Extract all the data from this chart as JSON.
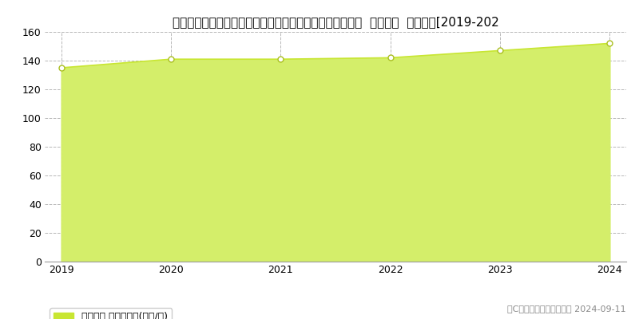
{
  "title": "埼玉県さいたま市中央区大字下落合字大原１０５０番２外  地価公示  地価推移[2019-202",
  "years": [
    2019,
    2020,
    2021,
    2022,
    2023,
    2024
  ],
  "values": [
    135,
    141,
    141,
    142,
    147,
    152
  ],
  "ylim": [
    0,
    160
  ],
  "yticks": [
    0,
    20,
    40,
    60,
    80,
    100,
    120,
    140,
    160
  ],
  "line_color": "#c8e632",
  "fill_color": "#d4ee6a",
  "marker_color": "#ffffff",
  "marker_edge_color": "#aabf20",
  "background_color": "#ffffff",
  "plot_bg_color": "#ffffff",
  "grid_color": "#b0b0b0",
  "legend_label": "地価公示 平均坪単価(万円/坪)",
  "legend_marker_color": "#c8e632",
  "copyright_text": "（C）土地価格ドットコム 2024-09-11",
  "title_fontsize": 11,
  "axis_fontsize": 9,
  "legend_fontsize": 9,
  "copyright_fontsize": 8
}
